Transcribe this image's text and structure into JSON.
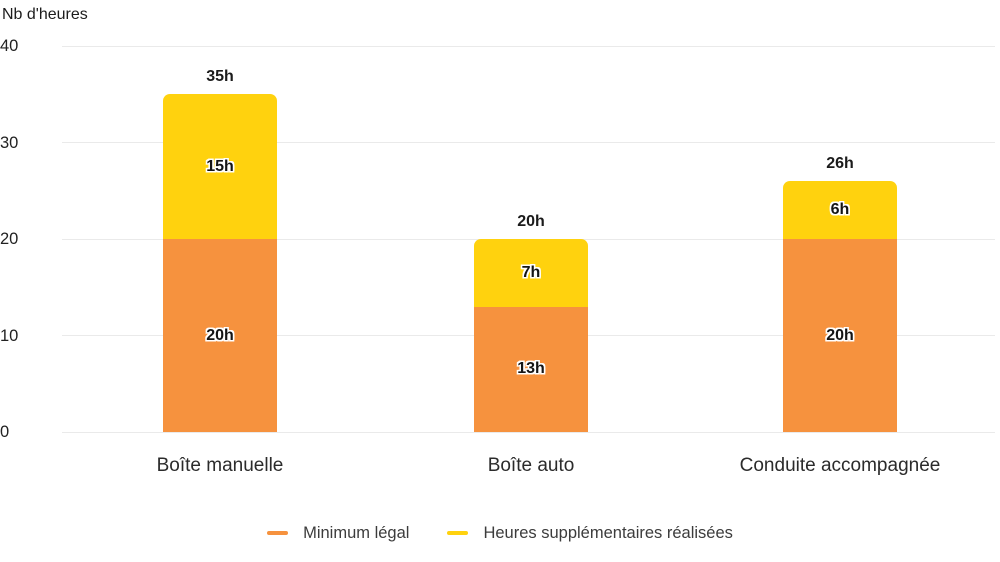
{
  "chart_data": {
    "type": "bar",
    "stacked": true,
    "title": "",
    "ylabel": "Nb d'heures",
    "xlabel": "",
    "categories": [
      "Boîte manuelle",
      "Boîte auto",
      "Conduite accompagnée"
    ],
    "series": [
      {
        "name": "Minimum légal",
        "color": "#F6923E",
        "values": [
          20,
          13,
          20
        ],
        "labels": [
          "20h",
          "13h",
          "20h"
        ]
      },
      {
        "name": "Heures supplémentaires réalisées",
        "color": "#FFD20E",
        "values": [
          15,
          7,
          6
        ],
        "labels": [
          "15h",
          "7h",
          "6h"
        ]
      }
    ],
    "totals": [
      35,
      20,
      26
    ],
    "total_labels": [
      "35h",
      "20h",
      "26h"
    ],
    "yticks": [
      0,
      10,
      20,
      30,
      40
    ],
    "ylim": [
      0,
      40
    ],
    "grid": true,
    "legend_position": "bottom"
  },
  "colors": {
    "grid": "#eaeaea",
    "tick_text": "#222222",
    "category_text": "#2b2b2b",
    "legend_text": "#3c3c3c"
  }
}
